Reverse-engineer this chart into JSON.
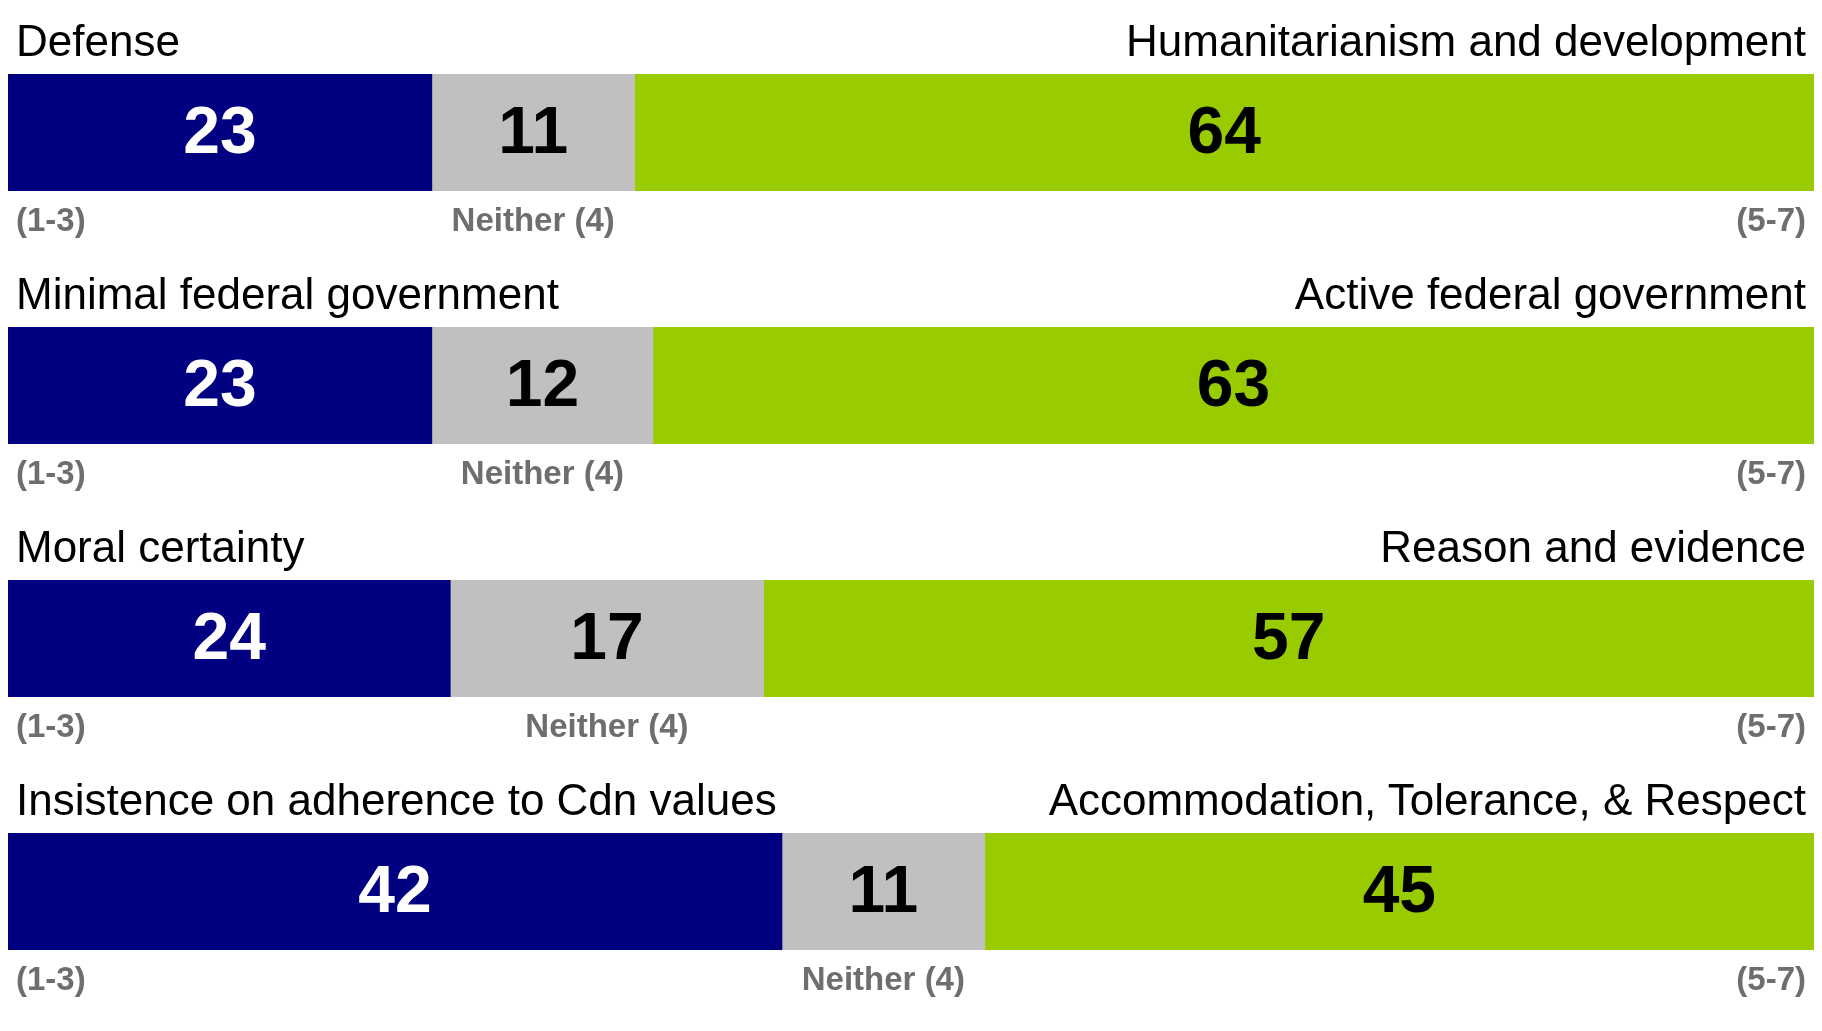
{
  "chart_data": [
    {
      "type": "bar",
      "orientation": "horizontal",
      "stacked": true,
      "categories": [
        null
      ],
      "xlim": [
        0,
        98
      ],
      "tick_labels": false,
      "data_labels": true,
      "legend": false,
      "annotations": [
        "Defense",
        "Humanitarianism and development"
      ],
      "series": [
        {
          "name": "(1-3)",
          "color": "#000080",
          "values": [
            23
          ]
        },
        {
          "name": "Neither (4)",
          "color": "#c0c0c0",
          "values": [
            11
          ]
        },
        {
          "name": "(5-7)",
          "color": "#99cc00",
          "values": [
            64
          ]
        }
      ]
    },
    {
      "type": "bar",
      "orientation": "horizontal",
      "stacked": true,
      "categories": [
        null
      ],
      "xlim": [
        0,
        98
      ],
      "tick_labels": false,
      "data_labels": true,
      "legend": false,
      "annotations": [
        "Minimal federal government",
        "Active federal government"
      ],
      "series": [
        {
          "name": "(1-3)",
          "color": "#000080",
          "values": [
            23
          ]
        },
        {
          "name": "Neither (4)",
          "color": "#c0c0c0",
          "values": [
            12
          ]
        },
        {
          "name": "(5-7)",
          "color": "#99cc00",
          "values": [
            63
          ]
        }
      ]
    },
    {
      "type": "bar",
      "orientation": "horizontal",
      "stacked": true,
      "categories": [
        null
      ],
      "xlim": [
        0,
        98
      ],
      "tick_labels": false,
      "data_labels": true,
      "legend": false,
      "annotations": [
        "Moral certainty",
        "Reason and evidence"
      ],
      "series": [
        {
          "name": "(1-3)",
          "color": "#000080",
          "values": [
            24
          ]
        },
        {
          "name": "Neither (4)",
          "color": "#c0c0c0",
          "values": [
            17
          ]
        },
        {
          "name": "(5-7)",
          "color": "#99cc00",
          "values": [
            57
          ]
        }
      ]
    },
    {
      "type": "bar",
      "orientation": "horizontal",
      "stacked": true,
      "categories": [
        null
      ],
      "xlim": [
        0,
        98
      ],
      "tick_labels": false,
      "data_labels": true,
      "legend": false,
      "annotations": [
        "Insistence on adherence to Cdn values",
        "Accommodation, Tolerance, & Respect"
      ],
      "series": [
        {
          "name": "(1-3)",
          "color": "#000080",
          "values": [
            42
          ]
        },
        {
          "name": "Neither (4)",
          "color": "#c0c0c0",
          "values": [
            11
          ]
        },
        {
          "name": "(5-7)",
          "color": "#99cc00",
          "values": [
            45
          ]
        }
      ]
    }
  ]
}
